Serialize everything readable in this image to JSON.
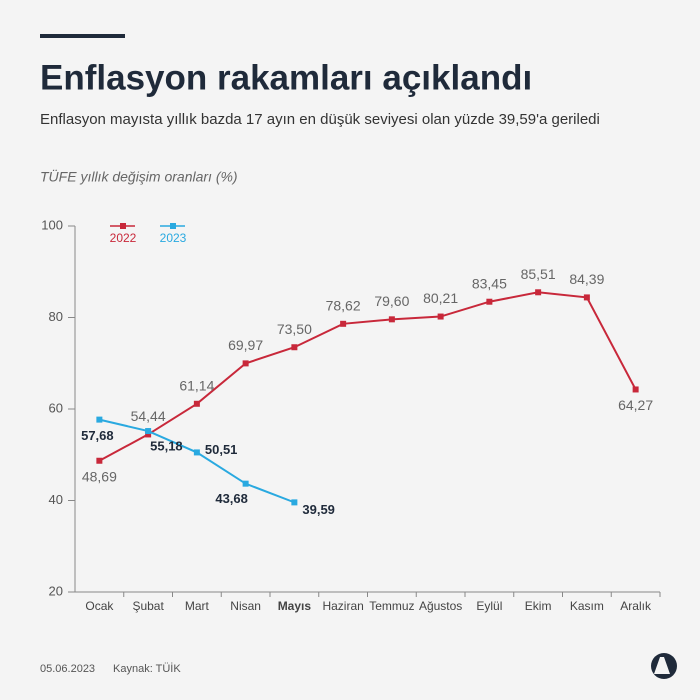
{
  "title": "Enflasyon rakamları açıklandı",
  "subtitle": "Enflasyon mayısta yıllık bazda 17 ayın en düşük seviyesi olan yüzde 39,59'a geriledi",
  "footer": {
    "date": "05.06.2023",
    "source": "Kaynak: TÜİK"
  },
  "chart_data": {
    "type": "line",
    "y_label": "TÜFE yıllık değişim oranları (%)",
    "categories": [
      "Ocak",
      "Şubat",
      "Mart",
      "Nisan",
      "Mayıs",
      "Haziran",
      "Temmuz",
      "Ağustos",
      "Eylül",
      "Ekim",
      "Kasım",
      "Aralık"
    ],
    "series": [
      {
        "name": "2022",
        "color": "#c8283a",
        "values": [
          48.69,
          54.44,
          61.14,
          69.97,
          73.5,
          78.62,
          79.6,
          80.21,
          83.45,
          85.51,
          84.39,
          64.27
        ],
        "value_labels": [
          "48,69",
          "54,44",
          "61,14",
          "69,97",
          "73,50",
          "78,62",
          "79,60",
          "80,21",
          "83,45",
          "85,51",
          "84,39",
          "64,27"
        ]
      },
      {
        "name": "2023",
        "color": "#29a9e0",
        "values": [
          57.68,
          55.18,
          50.51,
          43.68,
          39.59,
          null,
          null,
          null,
          null,
          null,
          null,
          null
        ],
        "value_labels": [
          "57,68",
          "55,18",
          "50,51",
          "43,68",
          "39,59",
          null,
          null,
          null,
          null,
          null,
          null,
          null
        ]
      }
    ],
    "ylim": [
      20,
      100
    ],
    "yticks": [
      20,
      40,
      60,
      80,
      100
    ],
    "grid": false,
    "legend": "top-left"
  }
}
